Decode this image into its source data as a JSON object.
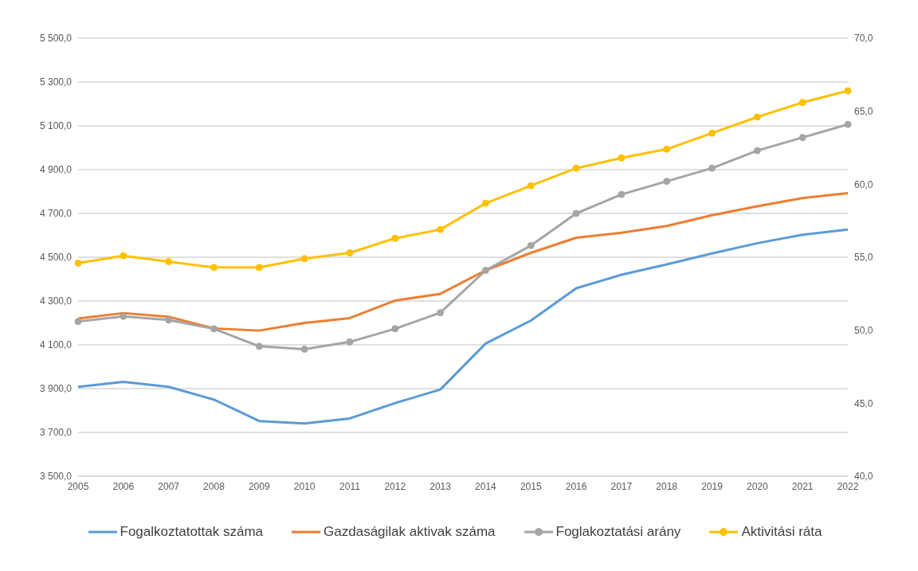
{
  "chart_data": {
    "type": "line",
    "categories": [
      "2005",
      "2006",
      "2007",
      "2008",
      "2009",
      "2010",
      "2011",
      "2012",
      "2013",
      "2014",
      "2015",
      "2016",
      "2017",
      "2018",
      "2019",
      "2020",
      "2021",
      "2022"
    ],
    "series": [
      {
        "name": "Fogalkoztatottak száma",
        "color": "#5b9bd5",
        "marker": "none",
        "values": [
          3908,
          3931,
          3908,
          3850,
          3752,
          3741,
          3764,
          3834,
          3896,
          4106,
          4211,
          4358,
          4420,
          4467,
          4517,
          4564,
          4603,
          4626
        ]
      },
      {
        "name": "Gazdaságilak aktivak száma",
        "color": "#ed7d31",
        "marker": "none",
        "values": [
          4220,
          4245,
          4228,
          4175,
          4165,
          4200,
          4222,
          4302,
          4333,
          4440,
          4520,
          4589,
          4612,
          4643,
          4692,
          4733,
          4770,
          4793
        ]
      },
      {
        "name": "Foglakoztatási arány",
        "color": "#a5a5a5",
        "marker": "circle",
        "axis": "y2",
        "values": [
          50.6,
          50.95,
          50.7,
          50.1,
          48.9,
          48.7,
          49.2,
          50.1,
          51.2,
          54.1,
          55.8,
          58.0,
          59.3,
          60.2,
          61.1,
          62.3,
          63.2,
          64.1
        ]
      },
      {
        "name": "Aktivitási ráta",
        "color": "#ffc000",
        "marker": "circle",
        "axis": "y2",
        "values": [
          54.6,
          55.1,
          54.7,
          54.3,
          54.3,
          54.9,
          55.3,
          56.3,
          56.9,
          58.7,
          59.9,
          61.1,
          61.8,
          62.4,
          63.5,
          64.6,
          65.6,
          66.4
        ]
      }
    ],
    "ylim": [
      3500,
      5500
    ],
    "yticks": [
      {
        "value": 3500,
        "label": "3 500,0"
      },
      {
        "value": 3700,
        "label": "3 700,0"
      },
      {
        "value": 3900,
        "label": "3 900,0"
      },
      {
        "value": 4100,
        "label": "4 100,0"
      },
      {
        "value": 4300,
        "label": "4 300,0"
      },
      {
        "value": 4500,
        "label": "4 500,0"
      },
      {
        "value": 4700,
        "label": "4 700,0"
      },
      {
        "value": 4900,
        "label": "4 900,0"
      },
      {
        "value": 5100,
        "label": "5 100,0"
      },
      {
        "value": 5300,
        "label": "5 300,0"
      },
      {
        "value": 5500,
        "label": "5 500,0"
      }
    ],
    "y2lim": [
      40,
      70
    ],
    "y2ticks": [
      {
        "value": 40,
        "label": "40,0"
      },
      {
        "value": 45,
        "label": "45,0"
      },
      {
        "value": 50,
        "label": "50,0"
      },
      {
        "value": 55,
        "label": "55,0"
      },
      {
        "value": 60,
        "label": "60,0"
      },
      {
        "value": 65,
        "label": "65,0"
      },
      {
        "value": 70,
        "label": "70,0"
      }
    ],
    "grid": "y",
    "legend": "bottom",
    "line_style": "solid"
  }
}
